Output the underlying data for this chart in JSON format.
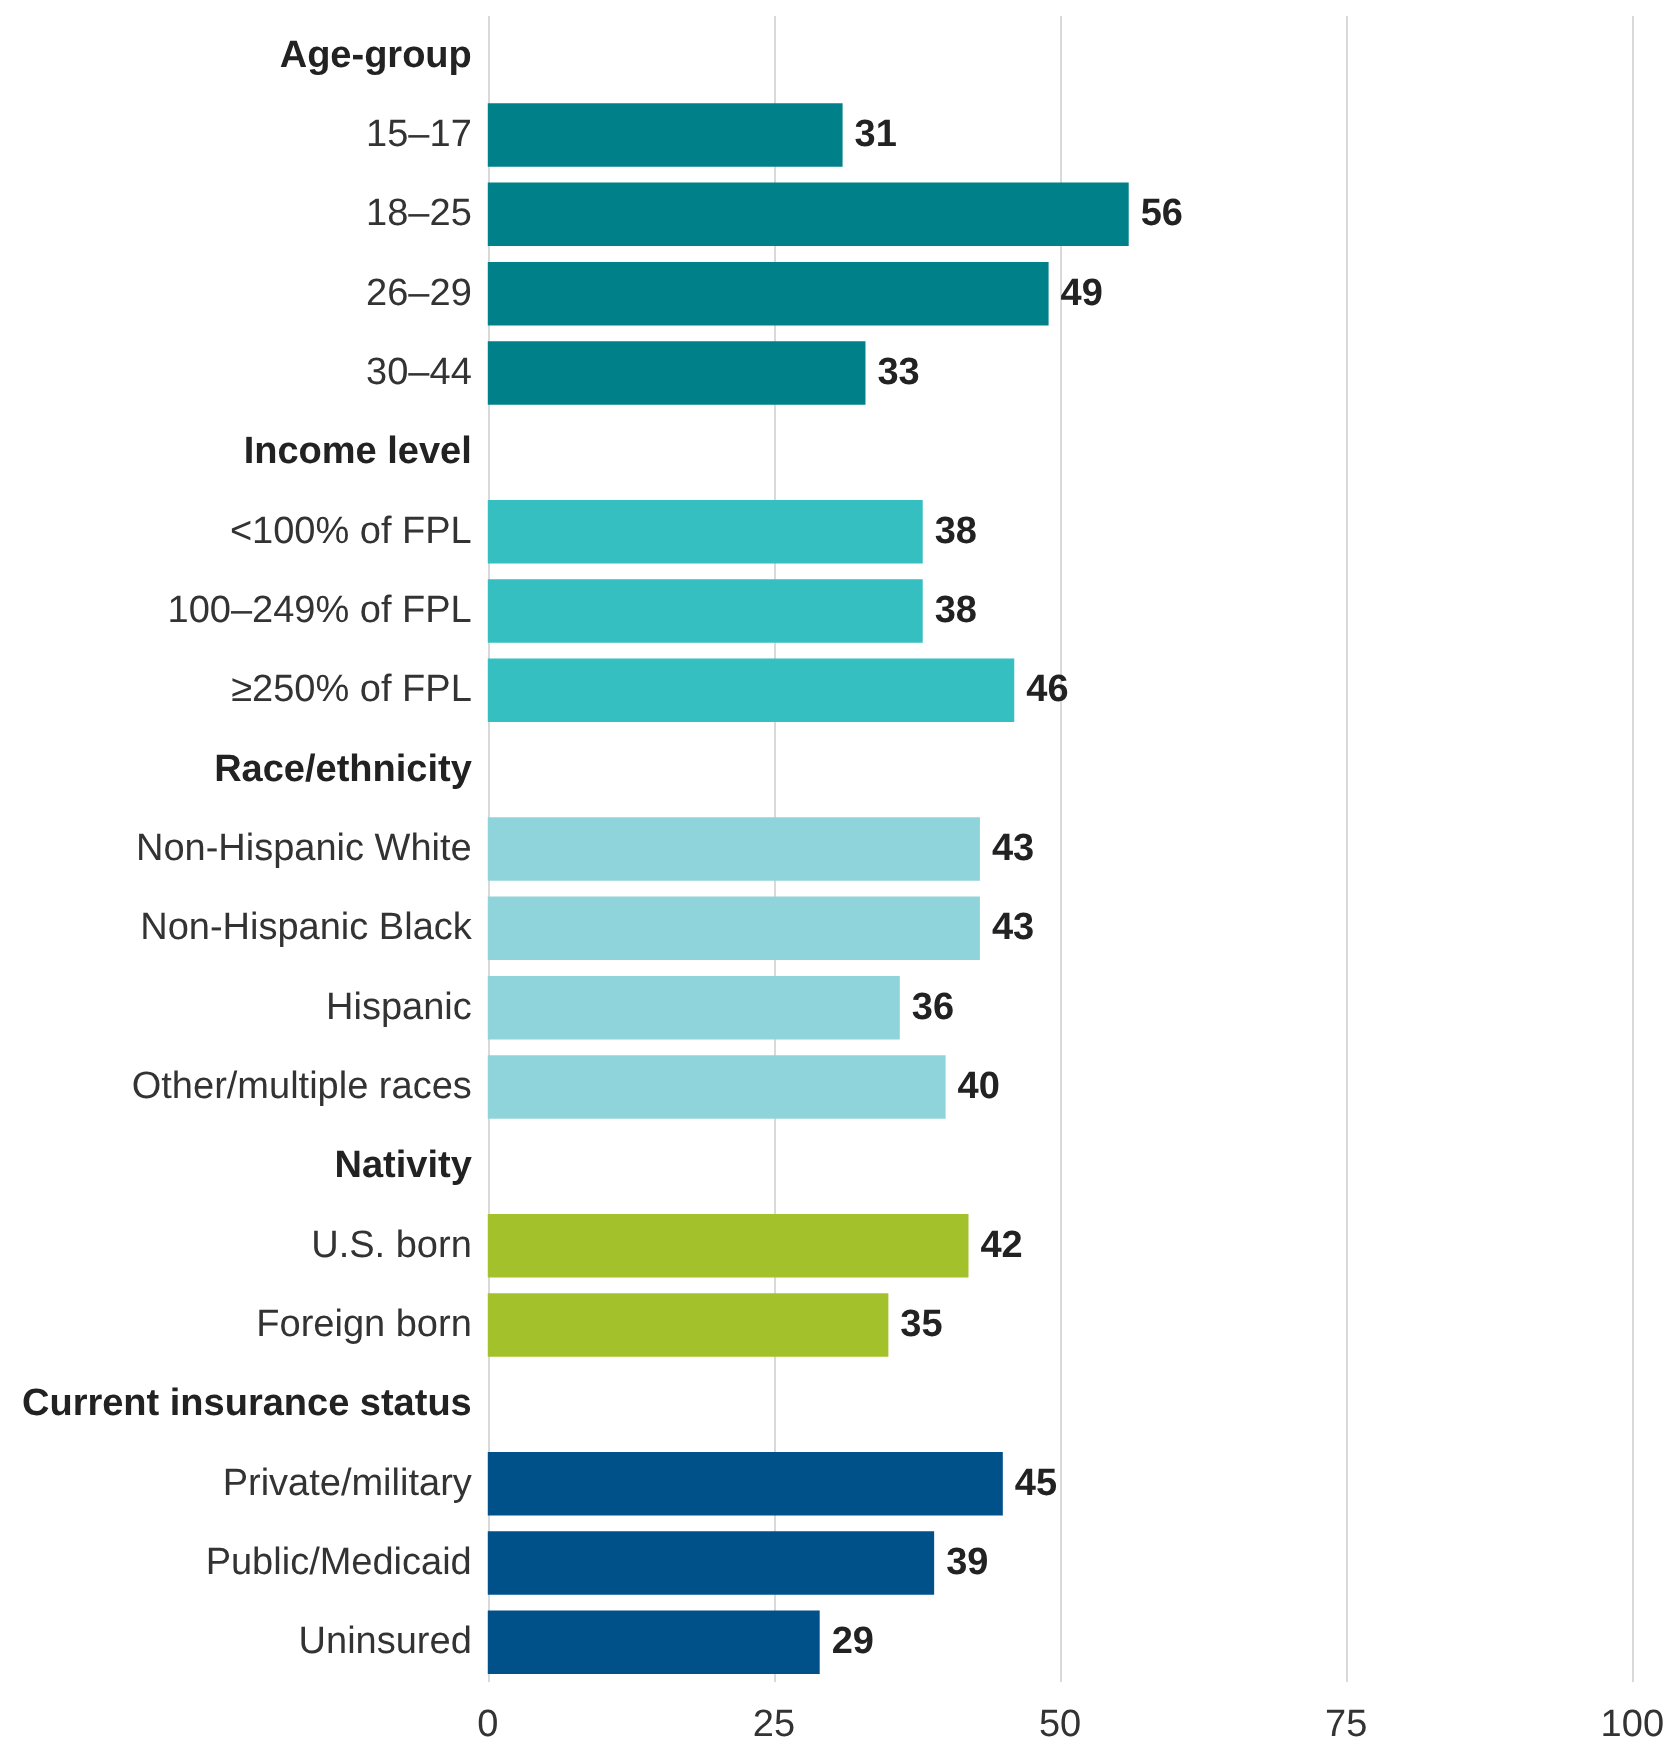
{
  "chart_data": {
    "type": "bar",
    "orientation": "horizontal",
    "categories": [
      "Age-group",
      "15–17",
      "18–25",
      "26–29",
      "30–44",
      "Income level",
      "<100% of FPL",
      "100–249% of FPL",
      "≥250% of FPL",
      "Race/ethnicity",
      "Non-Hispanic White",
      "Non-Hispanic Black",
      "Hispanic",
      "Other/multiple races",
      "Nativity",
      "U.S. born",
      "Foreign born",
      "Current insurance status",
      "Private/military",
      "Public/Medicaid",
      "Uninsured"
    ],
    "values": [
      null,
      31,
      56,
      49,
      33,
      null,
      38,
      38,
      46,
      null,
      43,
      43,
      36,
      40,
      null,
      42,
      35,
      null,
      45,
      39,
      29
    ],
    "colors": [
      null,
      "#00818a",
      "#00818a",
      "#00818a",
      "#00818a",
      null,
      "#35bfc1",
      "#35bfc1",
      "#35bfc1",
      null,
      "#8fd4da",
      "#8fd4da",
      "#8fd4da",
      "#8fd4da",
      null,
      "#a3c12a",
      "#a3c12a",
      null,
      "#00508a",
      "#00508a",
      "#00508a"
    ],
    "xlim": [
      0,
      100
    ],
    "xticks": [
      0,
      25,
      50,
      75,
      100
    ],
    "grid": "x",
    "data_labels": true
  }
}
